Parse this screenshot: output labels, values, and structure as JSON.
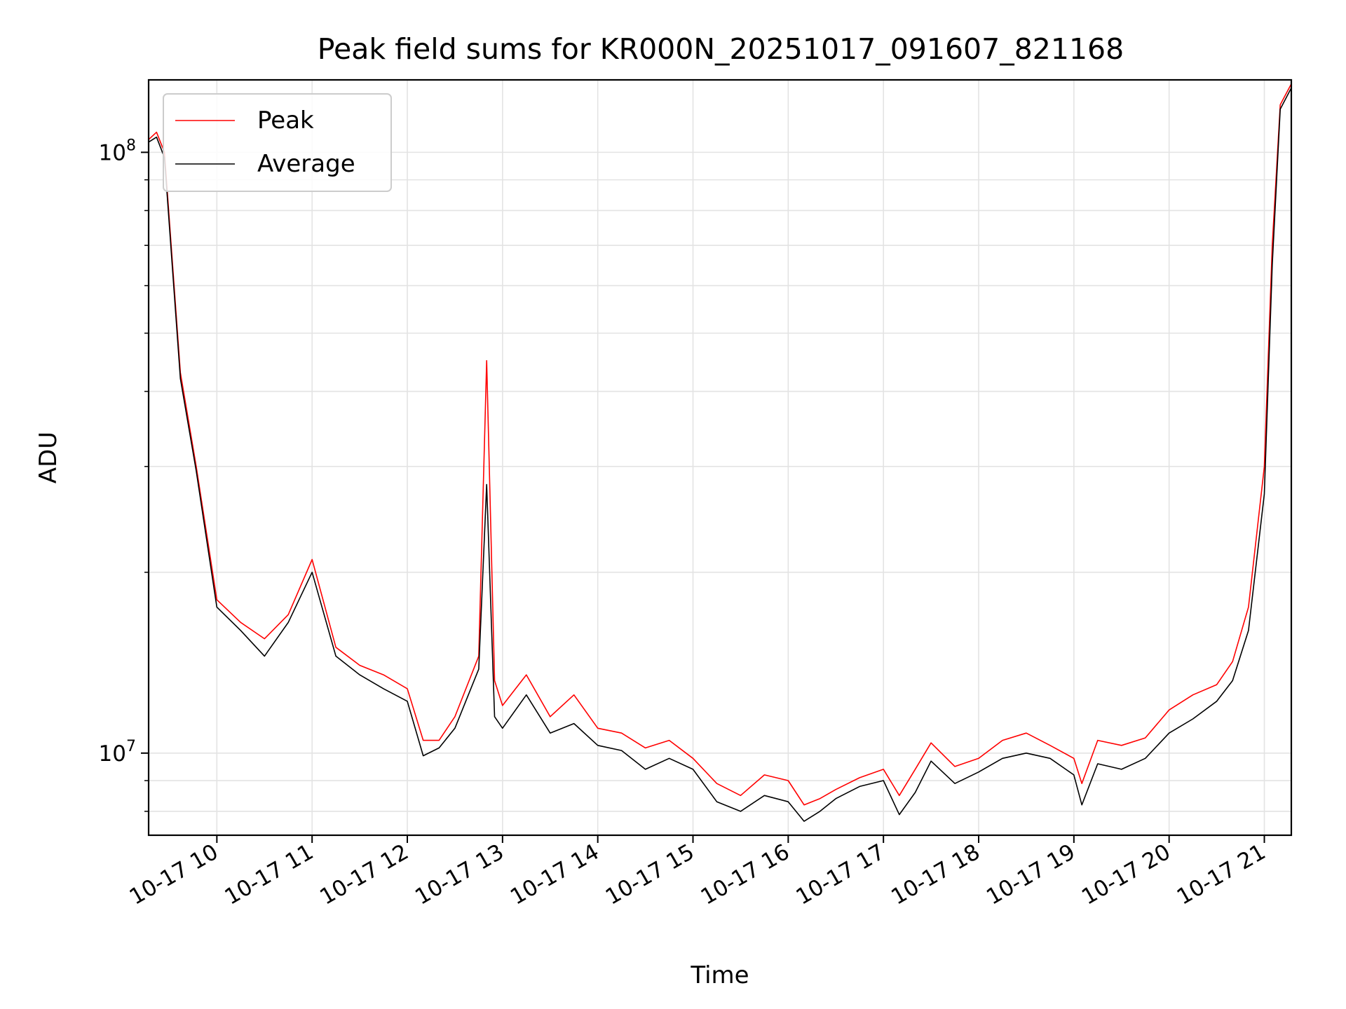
{
  "chart_data": {
    "type": "line",
    "title": "Peak field sums for KR000N_20251017_091607_821168",
    "xlabel": "Time",
    "ylabel": "ADU",
    "yscale": "log",
    "xlim": [
      "2025-10-17 09:17",
      "2025-10-17 21:17"
    ],
    "ylim": [
      7300000,
      132000000
    ],
    "grid": true,
    "legend": "top-left",
    "x_ticks": [
      "10-17 10",
      "10-17 11",
      "10-17 12",
      "10-17 13",
      "10-17 14",
      "10-17 15",
      "10-17 16",
      "10-17 17",
      "10-17 18",
      "10-17 19",
      "10-17 20",
      "10-17 21"
    ],
    "y_ticks": [
      {
        "base": "10",
        "exp": "7",
        "value": 10000000
      },
      {
        "base": "10",
        "exp": "8",
        "value": 100000000
      }
    ],
    "x": [
      "09:17",
      "09:22",
      "09:27",
      "09:37",
      "09:47",
      "10:00",
      "10:15",
      "10:30",
      "10:45",
      "11:00",
      "11:15",
      "11:30",
      "11:45",
      "12:00",
      "12:10",
      "12:20",
      "12:30",
      "12:45",
      "12:50",
      "12:55",
      "13:00",
      "13:15",
      "13:30",
      "13:45",
      "14:00",
      "14:15",
      "14:30",
      "14:45",
      "15:00",
      "15:15",
      "15:30",
      "15:45",
      "16:00",
      "16:10",
      "16:20",
      "16:30",
      "16:45",
      "17:00",
      "17:10",
      "17:20",
      "17:30",
      "17:45",
      "18:00",
      "18:15",
      "18:30",
      "18:45",
      "19:00",
      "19:05",
      "19:15",
      "19:30",
      "19:45",
      "20:00",
      "20:15",
      "20:30",
      "20:40",
      "20:50",
      "21:00",
      "21:05",
      "21:10",
      "21:17"
    ],
    "series": [
      {
        "name": "Peak",
        "color": "#ff0000",
        "values": [
          105000000,
          108000000,
          100000000,
          43000000,
          30000000,
          18000000,
          16500000,
          15500000,
          17000000,
          21000000,
          15000000,
          14000000,
          13500000,
          12800000,
          10500000,
          10500000,
          11500000,
          14500000,
          45000000,
          13200000,
          12000000,
          13500000,
          11500000,
          12500000,
          11000000,
          10800000,
          10200000,
          10500000,
          9800000,
          8900000,
          8500000,
          9200000,
          9000000,
          8200000,
          8400000,
          8700000,
          9100000,
          9400000,
          8500000,
          9400000,
          10400000,
          9500000,
          9800000,
          10500000,
          10800000,
          10300000,
          9800000,
          8900000,
          10500000,
          10300000,
          10600000,
          11800000,
          12500000,
          13000000,
          14200000,
          17500000,
          30000000,
          70000000,
          120000000,
          130000000
        ]
      },
      {
        "name": "Average",
        "color": "#000000",
        "values": [
          104000000,
          106000000,
          98000000,
          42000000,
          29500000,
          17500000,
          16000000,
          14500000,
          16500000,
          20000000,
          14500000,
          13500000,
          12800000,
          12200000,
          9900000,
          10200000,
          11000000,
          13800000,
          28000000,
          11500000,
          11000000,
          12500000,
          10800000,
          11200000,
          10300000,
          10100000,
          9400000,
          9800000,
          9400000,
          8300000,
          8000000,
          8500000,
          8300000,
          7700000,
          8000000,
          8400000,
          8800000,
          9000000,
          7900000,
          8600000,
          9700000,
          8900000,
          9300000,
          9800000,
          10000000,
          9800000,
          9200000,
          8200000,
          9600000,
          9400000,
          9800000,
          10800000,
          11400000,
          12200000,
          13200000,
          16000000,
          27000000,
          65000000,
          118000000,
          128000000
        ]
      }
    ]
  }
}
